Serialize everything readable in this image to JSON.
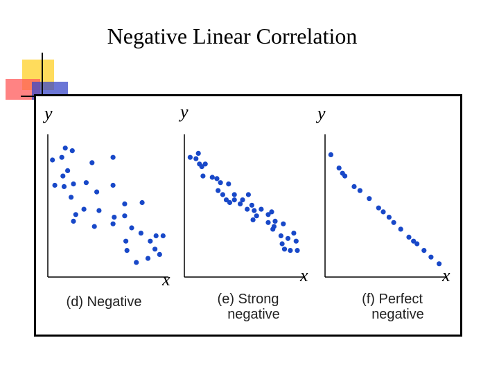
{
  "slide": {
    "title": "Negative Linear Correlation"
  },
  "colors": {
    "dot": "#1848c8",
    "axis": "#000000",
    "frame": "#000000"
  },
  "chart_data": [
    {
      "type": "scatter",
      "title": "",
      "caption": [
        "(d) Negative"
      ],
      "xlabel": "x",
      "ylabel": "y",
      "xlim": [
        0,
        10
      ],
      "ylim": [
        0,
        10
      ],
      "points": [
        [
          0.4,
          8.8
        ],
        [
          1.2,
          9.0
        ],
        [
          2.1,
          9.5
        ],
        [
          1.5,
          9.7
        ],
        [
          1.7,
          8.0
        ],
        [
          3.8,
          8.6
        ],
        [
          5.6,
          9.0
        ],
        [
          0.6,
          6.9
        ],
        [
          1.4,
          6.8
        ],
        [
          1.3,
          7.6
        ],
        [
          2.2,
          7.0
        ],
        [
          2.0,
          6.0
        ],
        [
          3.3,
          7.1
        ],
        [
          4.2,
          6.4
        ],
        [
          5.6,
          6.9
        ],
        [
          3.1,
          5.1
        ],
        [
          4.4,
          5.0
        ],
        [
          5.7,
          4.5
        ],
        [
          2.4,
          4.7
        ],
        [
          2.2,
          4.2
        ],
        [
          6.6,
          5.5
        ],
        [
          6.6,
          4.6
        ],
        [
          8.1,
          5.6
        ],
        [
          4.0,
          3.8
        ],
        [
          5.6,
          4.0
        ],
        [
          7.2,
          3.7
        ],
        [
          8.0,
          3.3
        ],
        [
          6.7,
          2.7
        ],
        [
          8.8,
          2.7
        ],
        [
          9.3,
          3.1
        ],
        [
          9.9,
          3.1
        ],
        [
          6.8,
          2.0
        ],
        [
          9.2,
          2.1
        ],
        [
          9.6,
          1.7
        ],
        [
          8.6,
          1.4
        ],
        [
          7.6,
          1.1
        ]
      ]
    },
    {
      "type": "scatter",
      "title": "",
      "caption": [
        "(e) Strong",
        "negative"
      ],
      "xlabel": "x",
      "ylabel": "y",
      "xlim": [
        0,
        10
      ],
      "ylim": [
        0,
        10
      ],
      "points": [
        [
          0.5,
          9.0
        ],
        [
          1.0,
          8.9
        ],
        [
          1.2,
          9.3
        ],
        [
          1.5,
          8.3
        ],
        [
          1.3,
          8.5
        ],
        [
          1.8,
          8.5
        ],
        [
          1.6,
          7.6
        ],
        [
          2.4,
          7.5
        ],
        [
          2.8,
          7.4
        ],
        [
          3.1,
          7.1
        ],
        [
          3.8,
          7.0
        ],
        [
          2.9,
          6.5
        ],
        [
          3.3,
          6.2
        ],
        [
          4.3,
          6.2
        ],
        [
          5.5,
          6.2
        ],
        [
          3.6,
          5.8
        ],
        [
          4.3,
          5.8
        ],
        [
          5.0,
          5.8
        ],
        [
          3.9,
          5.6
        ],
        [
          4.8,
          5.5
        ],
        [
          5.8,
          5.4
        ],
        [
          5.4,
          5.1
        ],
        [
          6.0,
          5.0
        ],
        [
          6.6,
          5.1
        ],
        [
          6.2,
          4.6
        ],
        [
          7.2,
          4.7
        ],
        [
          7.5,
          4.9
        ],
        [
          5.9,
          4.3
        ],
        [
          7.2,
          4.1
        ],
        [
          7.8,
          4.2
        ],
        [
          8.5,
          4.0
        ],
        [
          7.7,
          3.8
        ],
        [
          7.6,
          3.6
        ],
        [
          8.3,
          3.1
        ],
        [
          9.4,
          3.3
        ],
        [
          8.9,
          2.9
        ],
        [
          9.6,
          2.7
        ],
        [
          8.4,
          2.5
        ],
        [
          9.7,
          2.0
        ],
        [
          9.1,
          2.0
        ],
        [
          8.6,
          2.1
        ]
      ]
    },
    {
      "type": "scatter",
      "title": "",
      "caption": [
        "(f) Perfect",
        "negative"
      ],
      "xlabel": "x",
      "ylabel": "y",
      "xlim": [
        0,
        10
      ],
      "ylim": [
        0,
        10
      ],
      "points": [
        [
          0.5,
          9.2
        ],
        [
          1.2,
          8.2
        ],
        [
          1.5,
          7.8
        ],
        [
          1.7,
          7.6
        ],
        [
          2.5,
          6.8
        ],
        [
          3.0,
          6.5
        ],
        [
          3.8,
          5.9
        ],
        [
          4.6,
          5.2
        ],
        [
          5.0,
          4.9
        ],
        [
          5.5,
          4.5
        ],
        [
          5.9,
          4.1
        ],
        [
          6.5,
          3.6
        ],
        [
          7.2,
          3.0
        ],
        [
          7.9,
          2.5
        ],
        [
          7.6,
          2.7
        ],
        [
          8.5,
          2.0
        ],
        [
          9.1,
          1.5
        ],
        [
          9.8,
          1.0
        ]
      ]
    }
  ]
}
